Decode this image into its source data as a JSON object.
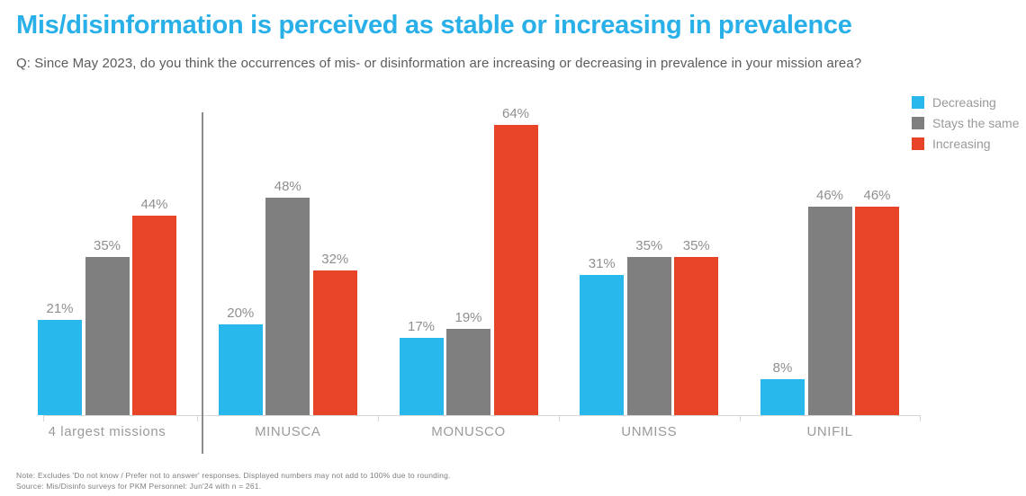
{
  "header": {
    "title": "Mis/disinformation is perceived as stable or increasing in prevalence",
    "subtitle": "Q: Since May 2023, do you think the occurrences of mis- or disinformation are increasing or decreasing in prevalence in your mission area?"
  },
  "colors": {
    "title": "#29B0E8",
    "axis": "#D6D6D6",
    "divider": "#8C8C8C"
  },
  "chart_data": {
    "type": "bar",
    "title": "Mis/disinformation is perceived as stable or increasing in prevalence",
    "categories": [
      "4 largest missions",
      "MINUSCA",
      "MONUSCO",
      "UNMISS",
      "UNIFIL"
    ],
    "series": [
      {
        "name": "Decreasing",
        "color": "#28B8EC",
        "values": [
          21,
          20,
          17,
          31,
          8
        ]
      },
      {
        "name": "Stays the same",
        "color": "#7F7F7F",
        "values": [
          35,
          48,
          19,
          35,
          46
        ]
      },
      {
        "name": "Increasing",
        "color": "#E84427",
        "values": [
          44,
          32,
          64,
          35,
          46
        ]
      }
    ],
    "value_label_format": "{v}%",
    "unit": "%",
    "ylim": [
      0,
      70
    ],
    "grid": false,
    "y_axis_visible": false,
    "legend_position": "top-right",
    "divider_after_category": "4 largest missions"
  },
  "footnotes": {
    "note": "Note: Excludes 'Do not know / Prefer not to answer' responses. Displayed numbers may not add to 100% due to rounding.",
    "source": "Source: Mis/Disinfo surveys for PKM Personnel: Jun'24 with n = 261."
  }
}
